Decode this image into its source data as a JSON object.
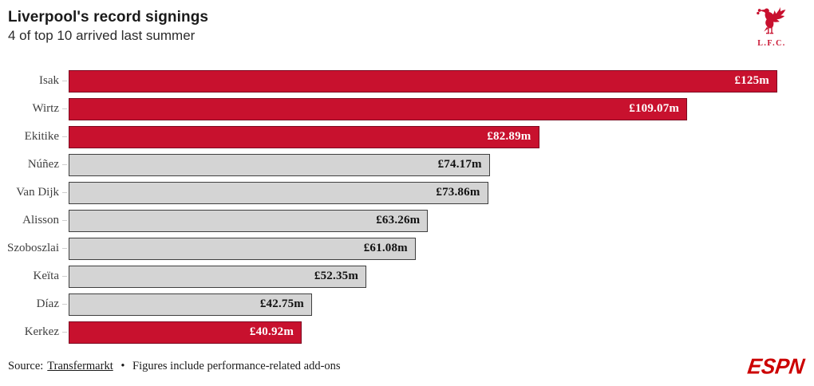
{
  "header": {
    "title": "Liverpool's record signings",
    "subtitle": "4 of top 10 arrived last summer"
  },
  "chart_data": {
    "type": "bar",
    "orientation": "horizontal",
    "title": "Liverpool's record signings",
    "subtitle": "4 of top 10 arrived last summer",
    "xlabel": "",
    "ylabel": "",
    "xlim": [
      0,
      125
    ],
    "grid": false,
    "unit": "£m",
    "max_value": 125,
    "bars": [
      {
        "label": "Isak",
        "value": 125,
        "display": "£125m",
        "highlight": true
      },
      {
        "label": "Wirtz",
        "value": 109.07,
        "display": "£109.07m",
        "highlight": true
      },
      {
        "label": "Ekitike",
        "value": 82.89,
        "display": "£82.89m",
        "highlight": true
      },
      {
        "label": "Núñez",
        "value": 74.17,
        "display": "£74.17m",
        "highlight": false
      },
      {
        "label": "Van Dijk",
        "value": 73.86,
        "display": "£73.86m",
        "highlight": false
      },
      {
        "label": "Alisson",
        "value": 63.26,
        "display": "£63.26m",
        "highlight": false
      },
      {
        "label": "Szoboszlai",
        "value": 61.08,
        "display": "£61.08m",
        "highlight": false
      },
      {
        "label": "Keïta",
        "value": 52.35,
        "display": "£52.35m",
        "highlight": false
      },
      {
        "label": "Díaz",
        "value": 42.75,
        "display": "£42.75m",
        "highlight": false
      },
      {
        "label": "Kerkez",
        "value": 40.92,
        "display": "£40.92m",
        "highlight": true
      }
    ],
    "colors": {
      "highlight": "#C8112E",
      "highlight_border": "#7d0a22",
      "default": "#d4d4d4",
      "default_border": "#3f3f3f",
      "value_on_highlight": "#ffffff",
      "value_on_default": "#111111"
    }
  },
  "footer": {
    "prefix": "Source:",
    "link": "Transfermarkt",
    "separator": "•",
    "note": "Figures include performance-related add-ons"
  },
  "logos": {
    "club_caption": "L.F.C.",
    "club_red": "#C8102E",
    "brand_label": "ESPN",
    "brand_red": "#CC0000"
  }
}
